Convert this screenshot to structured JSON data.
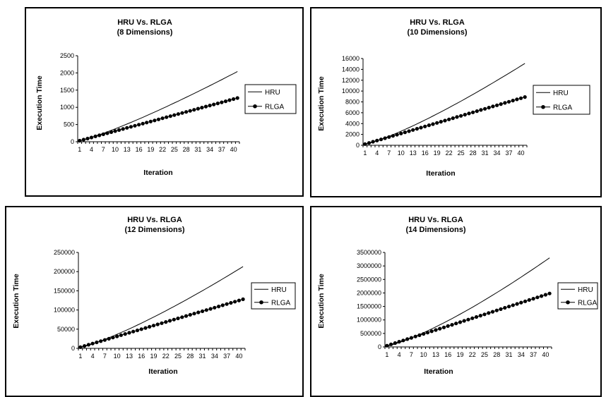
{
  "chart_data": [
    {
      "type": "line",
      "title": "HRU Vs. RLGA",
      "subtitle": "(8 Dimensions)",
      "xlabel": "Iteration",
      "ylabel": "Execution Time",
      "ylim": [
        0,
        2500
      ],
      "yticks": [
        "0",
        "500",
        "1000",
        "1500",
        "2000",
        "2500"
      ],
      "xticks": [
        "1",
        "4",
        "7",
        "10",
        "13",
        "16",
        "19",
        "22",
        "25",
        "28",
        "31",
        "34",
        "37",
        "40"
      ],
      "x_count": 41,
      "legend_position": "right",
      "series": [
        {
          "name": "HRU",
          "marker": "none",
          "end_value": 2040,
          "curve": 1.2
        },
        {
          "name": "RLGA",
          "marker": "circle",
          "end_value": 1270,
          "curve": 1.0
        }
      ]
    },
    {
      "type": "line",
      "title": "HRU Vs. RLGA",
      "subtitle": "(10 Dimensions)",
      "xlabel": "Iteration",
      "ylabel": "Execution Time",
      "ylim": [
        0,
        16000
      ],
      "yticks": [
        "0",
        "2000",
        "4000",
        "6000",
        "8000",
        "10000",
        "12000",
        "14000",
        "16000"
      ],
      "xticks": [
        "1",
        "4",
        "7",
        "10",
        "13",
        "16",
        "19",
        "22",
        "25",
        "28",
        "31",
        "34",
        "37",
        "40"
      ],
      "x_count": 41,
      "legend_position": "right",
      "series": [
        {
          "name": "HRU",
          "marker": "none",
          "end_value": 15100,
          "curve": 1.25
        },
        {
          "name": "RLGA",
          "marker": "circle",
          "end_value": 8900,
          "curve": 1.0
        }
      ]
    },
    {
      "type": "line",
      "title": "HRU Vs. RLGA",
      "subtitle": "(12 Dimensions)",
      "xlabel": "Iteration",
      "ylabel": "Execution Time",
      "ylim": [
        0,
        250000
      ],
      "yticks": [
        "0",
        "50000",
        "100000",
        "150000",
        "200000",
        "250000"
      ],
      "xticks": [
        "1",
        "4",
        "7",
        "10",
        "13",
        "16",
        "19",
        "22",
        "25",
        "28",
        "31",
        "34",
        "37",
        "40"
      ],
      "x_count": 41,
      "legend_position": "right",
      "series": [
        {
          "name": "HRU",
          "marker": "none",
          "end_value": 213000,
          "curve": 1.25
        },
        {
          "name": "RLGA",
          "marker": "circle",
          "end_value": 128000,
          "curve": 1.0
        }
      ]
    },
    {
      "type": "line",
      "title": "HRU Vs. RLGA",
      "subtitle": "(14 Dimensions)",
      "xlabel": "Iteration",
      "ylabel": "Execution Time",
      "ylim": [
        0,
        3500000
      ],
      "yticks": [
        "0",
        "500000",
        "1000000",
        "1500000",
        "2000000",
        "2500000",
        "3000000",
        "3500000"
      ],
      "xticks": [
        "1",
        "4",
        "7",
        "10",
        "13",
        "16",
        "19",
        "22",
        "25",
        "28",
        "31",
        "34",
        "37",
        "40"
      ],
      "x_count": 41,
      "legend_position": "right",
      "series": [
        {
          "name": "HRU",
          "marker": "none",
          "end_value": 3300000,
          "curve": 1.3
        },
        {
          "name": "RLGA",
          "marker": "circle",
          "end_value": 1980000,
          "curve": 1.0
        }
      ]
    }
  ]
}
